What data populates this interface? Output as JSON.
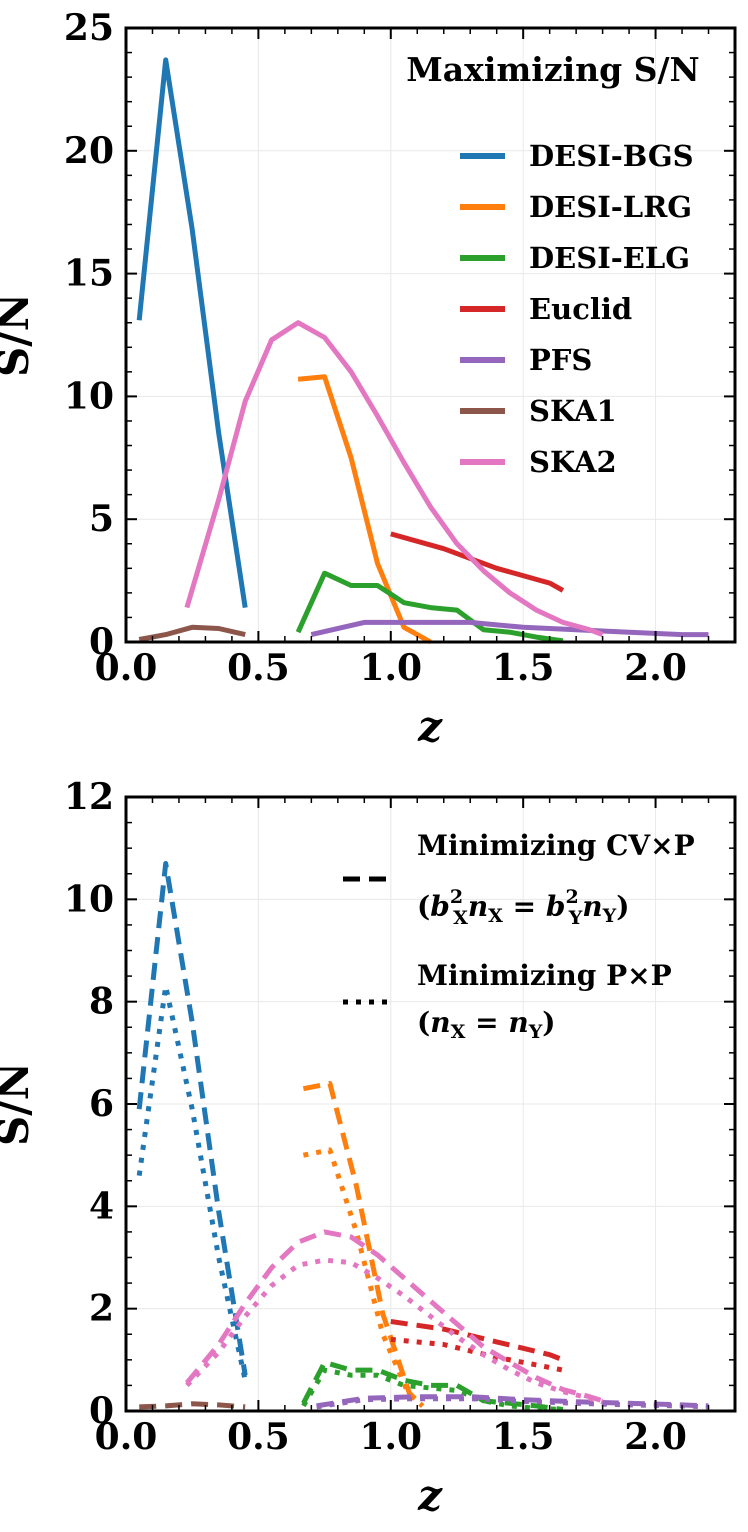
{
  "colors": {
    "DESI-BGS": "#1f77b4",
    "DESI-LRG": "#ff7f0e",
    "DESI-ELG": "#2ca02c",
    "Euclid": "#d62728",
    "PFS": "#9467bd",
    "SKA1": "#8c564b",
    "SKA2": "#e377c2"
  },
  "chart_data": [
    {
      "type": "line",
      "title": "Maximizing S/N",
      "xlabel": "z",
      "ylabel": "S/N",
      "xlim": [
        0.0,
        2.3
      ],
      "ylim": [
        0,
        25
      ],
      "xticks": [
        0.0,
        0.5,
        1.0,
        1.5,
        2.0
      ],
      "xtick_labels": [
        "0.0",
        "0.5",
        "1.0",
        "1.5",
        "2.0"
      ],
      "yticks": [
        0,
        5,
        10,
        15,
        20,
        25
      ],
      "ytick_labels": [
        "0",
        "5",
        "10",
        "15",
        "20",
        "25"
      ],
      "legend": [
        "DESI-BGS",
        "DESI-LRG",
        "DESI-ELG",
        "Euclid",
        "PFS",
        "SKA1",
        "SKA2"
      ],
      "series": [
        {
          "name": "DESI-BGS",
          "x": [
            0.05,
            0.15,
            0.25,
            0.35,
            0.45
          ],
          "y": [
            13.1,
            23.7,
            16.8,
            8.5,
            1.4
          ]
        },
        {
          "name": "DESI-LRG",
          "x": [
            0.65,
            0.75,
            0.85,
            0.95,
            1.05,
            1.15
          ],
          "y": [
            10.7,
            10.8,
            7.5,
            3.2,
            0.6,
            0.0
          ]
        },
        {
          "name": "DESI-ELG",
          "x": [
            0.65,
            0.75,
            0.85,
            0.95,
            1.05,
            1.15,
            1.25,
            1.35,
            1.45,
            1.55,
            1.65
          ],
          "y": [
            0.4,
            2.8,
            2.3,
            2.3,
            1.6,
            1.4,
            1.3,
            0.5,
            0.4,
            0.2,
            0.05
          ]
        },
        {
          "name": "Euclid",
          "x": [
            1.0,
            1.2,
            1.4,
            1.6,
            1.65
          ],
          "y": [
            4.4,
            3.8,
            3.0,
            2.4,
            2.1
          ]
        },
        {
          "name": "PFS",
          "x": [
            0.7,
            0.9,
            1.1,
            1.3,
            1.5,
            1.7,
            1.9,
            2.1,
            2.2
          ],
          "y": [
            0.3,
            0.8,
            0.8,
            0.8,
            0.6,
            0.5,
            0.4,
            0.3,
            0.3
          ]
        },
        {
          "name": "SKA1",
          "x": [
            0.05,
            0.15,
            0.25,
            0.35,
            0.45
          ],
          "y": [
            0.1,
            0.3,
            0.6,
            0.55,
            0.3
          ]
        },
        {
          "name": "SKA2",
          "x": [
            0.23,
            0.35,
            0.45,
            0.55,
            0.65,
            0.75,
            0.85,
            0.95,
            1.05,
            1.15,
            1.25,
            1.35,
            1.45,
            1.55,
            1.65,
            1.75,
            1.8
          ],
          "y": [
            1.4,
            5.8,
            9.8,
            12.3,
            13.0,
            12.4,
            11.0,
            9.2,
            7.3,
            5.5,
            4.0,
            2.9,
            2.0,
            1.3,
            0.8,
            0.5,
            0.3
          ]
        }
      ]
    },
    {
      "type": "line",
      "title": "",
      "xlabel": "z",
      "ylabel": "S/N",
      "xlim": [
        0.0,
        2.3
      ],
      "ylim": [
        0,
        12
      ],
      "xticks": [
        0.0,
        0.5,
        1.0,
        1.5,
        2.0
      ],
      "xtick_labels": [
        "0.0",
        "0.5",
        "1.0",
        "1.5",
        "2.0"
      ],
      "yticks": [
        0,
        2,
        4,
        6,
        8,
        10,
        12
      ],
      "ytick_labels": [
        "0",
        "2",
        "4",
        "6",
        "8",
        "10",
        "12"
      ],
      "legend_entries": [
        {
          "style": "dashed",
          "line1": "Minimizing CV×P",
          "line2": "(b²Xn X = b²Yn Y)"
        },
        {
          "style": "dotted",
          "line1": "Minimizing P×P",
          "line2": "(nX = nY)"
        }
      ],
      "series": [
        {
          "name": "DESI-BGS",
          "style": "dashed",
          "x": [
            0.05,
            0.15,
            0.25,
            0.35,
            0.45
          ],
          "y": [
            5.9,
            10.7,
            7.6,
            3.9,
            0.7
          ]
        },
        {
          "name": "DESI-BGS",
          "style": "dotted",
          "x": [
            0.05,
            0.15,
            0.25,
            0.35,
            0.45
          ],
          "y": [
            4.6,
            8.3,
            5.9,
            3.0,
            0.6
          ]
        },
        {
          "name": "DESI-LRG",
          "style": "dashed",
          "x": [
            0.67,
            0.77,
            0.87,
            0.97,
            1.07,
            1.12
          ],
          "y": [
            6.3,
            6.4,
            4.4,
            1.9,
            0.35,
            0.1
          ]
        },
        {
          "name": "DESI-LRG",
          "style": "dotted",
          "x": [
            0.67,
            0.77,
            0.87,
            0.97,
            1.07,
            1.12
          ],
          "y": [
            5.0,
            5.1,
            3.5,
            1.5,
            0.3,
            0.1
          ]
        },
        {
          "name": "DESI-ELG",
          "style": "dashed",
          "x": [
            0.67,
            0.75,
            0.85,
            0.95,
            1.05,
            1.15,
            1.25,
            1.35,
            1.45,
            1.55,
            1.65
          ],
          "y": [
            0.15,
            0.95,
            0.8,
            0.8,
            0.6,
            0.5,
            0.5,
            0.2,
            0.15,
            0.1,
            0.03
          ]
        },
        {
          "name": "DESI-ELG",
          "style": "dotted",
          "x": [
            0.67,
            0.75,
            0.85,
            0.95,
            1.05,
            1.15,
            1.25,
            1.35,
            1.45,
            1.55,
            1.65
          ],
          "y": [
            0.1,
            0.8,
            0.7,
            0.7,
            0.5,
            0.45,
            0.4,
            0.2,
            0.1,
            0.05,
            0.03
          ]
        },
        {
          "name": "Euclid",
          "style": "dashed",
          "x": [
            1.0,
            1.2,
            1.4,
            1.6,
            1.65
          ],
          "y": [
            1.75,
            1.6,
            1.35,
            1.1,
            1.0
          ]
        },
        {
          "name": "Euclid",
          "style": "dotted",
          "x": [
            1.0,
            1.2,
            1.4,
            1.6,
            1.65
          ],
          "y": [
            1.4,
            1.3,
            1.05,
            0.85,
            0.8
          ]
        },
        {
          "name": "PFS",
          "style": "dashed",
          "x": [
            0.72,
            0.9,
            1.1,
            1.3,
            1.5,
            1.7,
            1.9,
            2.1,
            2.2
          ],
          "y": [
            0.1,
            0.25,
            0.28,
            0.28,
            0.22,
            0.18,
            0.15,
            0.12,
            0.1
          ]
        },
        {
          "name": "PFS",
          "style": "dotted",
          "x": [
            0.72,
            0.9,
            1.1,
            1.3,
            1.5,
            1.7,
            1.9,
            2.1,
            2.2
          ],
          "y": [
            0.08,
            0.22,
            0.24,
            0.24,
            0.19,
            0.15,
            0.12,
            0.1,
            0.08
          ]
        },
        {
          "name": "SKA1",
          "style": "dashed",
          "x": [
            0.05,
            0.15,
            0.25,
            0.35,
            0.45
          ],
          "y": [
            0.08,
            0.1,
            0.14,
            0.12,
            0.08
          ]
        },
        {
          "name": "SKA2",
          "style": "dashed",
          "x": [
            0.23,
            0.35,
            0.45,
            0.55,
            0.65,
            0.75,
            0.85,
            0.95,
            1.05,
            1.15,
            1.25,
            1.35,
            1.45,
            1.55,
            1.65,
            1.75,
            1.8
          ],
          "y": [
            0.55,
            1.3,
            2.1,
            2.8,
            3.3,
            3.5,
            3.4,
            3.05,
            2.6,
            2.15,
            1.7,
            1.25,
            0.95,
            0.65,
            0.42,
            0.28,
            0.2
          ]
        },
        {
          "name": "SKA2",
          "style": "dotted",
          "x": [
            0.23,
            0.35,
            0.45,
            0.55,
            0.65,
            0.75,
            0.85,
            0.95,
            1.05,
            1.15,
            1.25,
            1.35,
            1.45,
            1.55,
            1.65,
            1.75,
            1.8
          ],
          "y": [
            0.5,
            1.15,
            1.85,
            2.45,
            2.85,
            2.95,
            2.9,
            2.6,
            2.25,
            1.85,
            1.45,
            1.1,
            0.8,
            0.55,
            0.38,
            0.25,
            0.18
          ]
        }
      ]
    }
  ]
}
